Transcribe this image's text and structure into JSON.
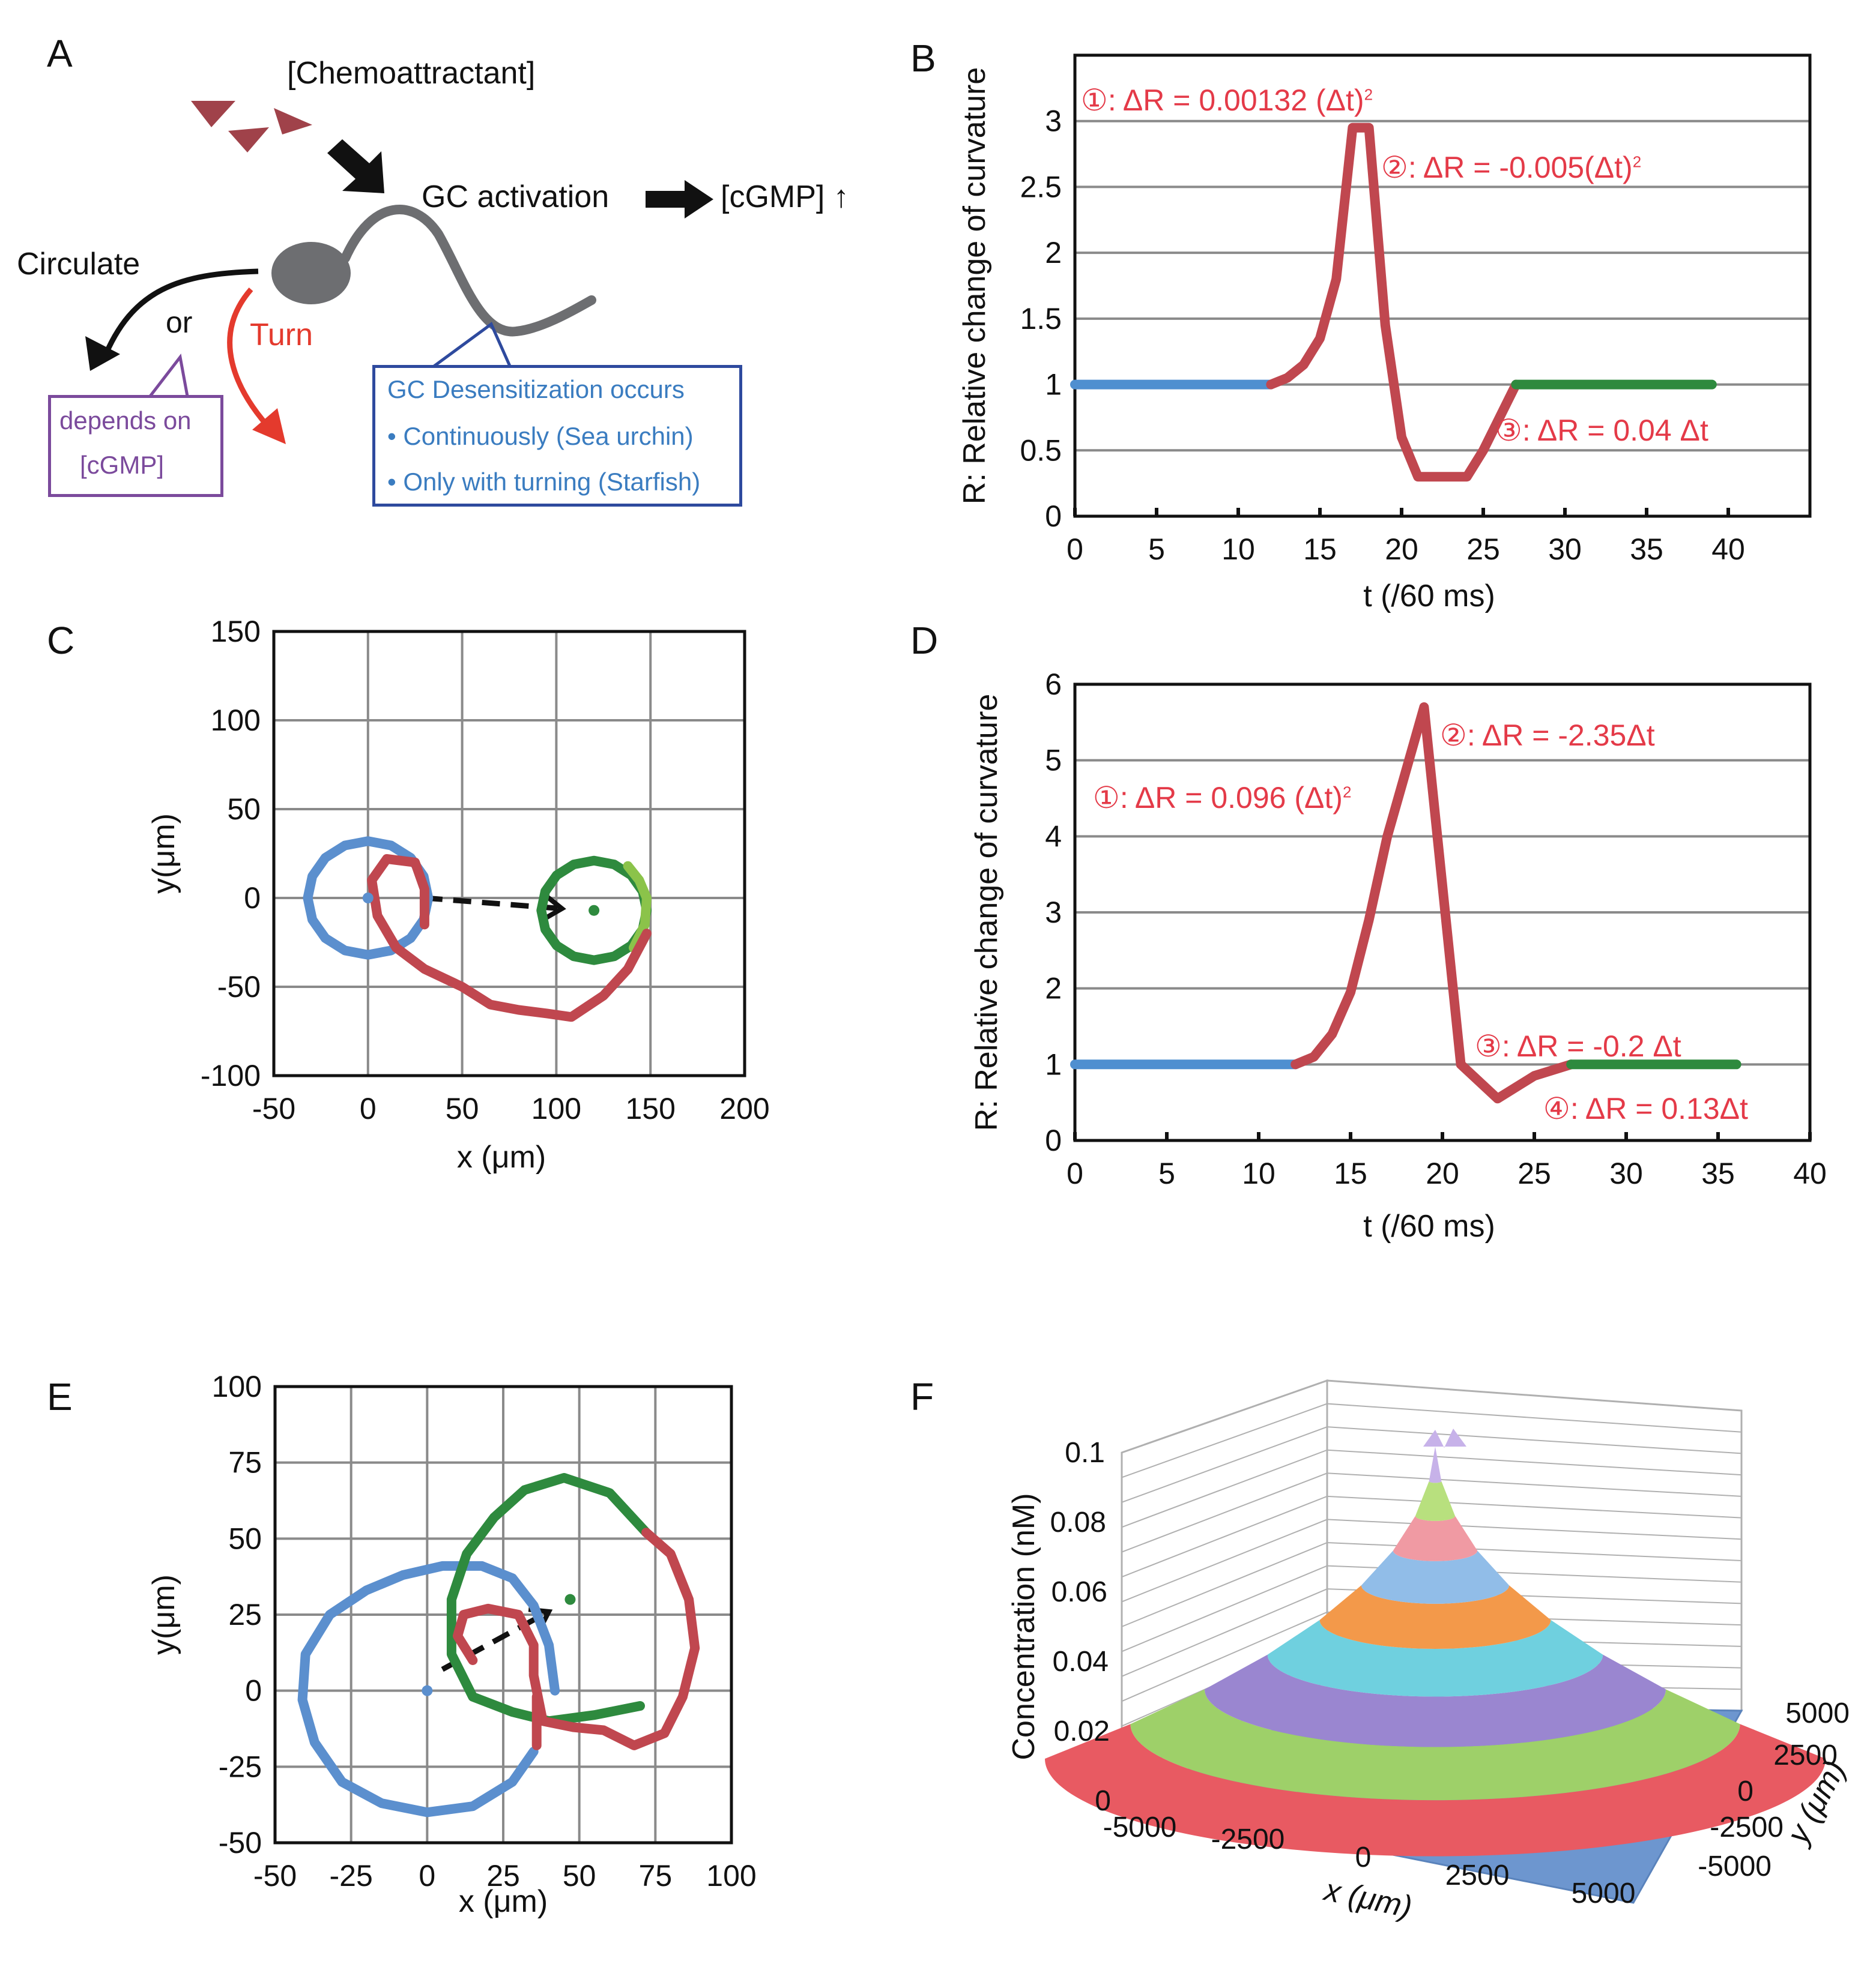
{
  "panels": {
    "A": {
      "letter": "A",
      "chemoattractant": "[Chemoattractant]",
      "gc_activation": "GC activation",
      "cgmp_up": "[cGMP] ↑",
      "circulate": "Circulate",
      "or": "or",
      "turn": "Turn",
      "depends_line1": "depends on",
      "depends_line2": "[cGMP]",
      "desens_title": "GC Desensitization occurs",
      "desens_item1": "• Continuously (Sea urchin)",
      "desens_item2": "• Only with turning (Starfish)",
      "colors": {
        "triangle": "#a0424a",
        "sperm": "#6d6e71",
        "arrow": "#111111",
        "turn": "#e43a2d",
        "blue_box": "#2e4a9e",
        "blue_text": "#3a7cc0",
        "purple": "#7b4a9c"
      }
    },
    "B": {
      "letter": "B"
    },
    "C": {
      "letter": "C"
    },
    "D": {
      "letter": "D"
    },
    "E": {
      "letter": "E"
    },
    "F": {
      "letter": "F"
    }
  },
  "annotations": {
    "B": {
      "a1_prefix": "①: ΔR = 0.00132 (Δt)",
      "a1_sup": "2",
      "a2_prefix": "②: ΔR = -0.005(Δt)",
      "a2_sup": "2",
      "a3": "③: ΔR = 0.04 Δt"
    },
    "D": {
      "a1_prefix": "①: ΔR = 0.096 (Δt)",
      "a1_sup": "2",
      "a2": "②: ΔR = -2.35Δt",
      "a3": "③: ΔR = -0.2 Δt",
      "a4": "④: ΔR = 0.13Δt"
    }
  },
  "chart_data": [
    {
      "id": "B",
      "type": "line",
      "xlabel": "t (/60 ms)",
      "ylabel": "R: Relative change of curvature",
      "xlim": [
        0,
        45
      ],
      "ylim": [
        0,
        3.5
      ],
      "xticks": [
        0,
        5,
        10,
        15,
        20,
        25,
        30,
        35,
        40
      ],
      "yticks": [
        0,
        0.5,
        1,
        1.5,
        2,
        2.5,
        3
      ],
      "ytick_labels": [
        "0",
        "0.5",
        "1",
        "1.5",
        "2",
        "2.5",
        "3"
      ],
      "grid": "horizontal",
      "series": [
        {
          "name": "before",
          "color": "#4f8fd0",
          "x": [
            0,
            12
          ],
          "y": [
            1,
            1
          ]
        },
        {
          "name": "turn",
          "color": "#c0474f",
          "x": [
            12,
            13,
            14,
            15,
            16,
            17,
            18,
            19,
            20,
            21,
            22,
            23,
            24,
            25,
            26,
            27
          ],
          "y": [
            1,
            1.05,
            1.15,
            1.35,
            1.8,
            2.95,
            2.95,
            1.45,
            0.6,
            0.3,
            0.3,
            0.3,
            0.3,
            0.5,
            0.75,
            1
          ]
        },
        {
          "name": "after",
          "color": "#2e8a3e",
          "x": [
            27,
            39
          ],
          "y": [
            1,
            1
          ]
        }
      ]
    },
    {
      "id": "C",
      "type": "line",
      "xlabel": "x (μm)",
      "ylabel": "y(μm)",
      "xlim": [
        -50,
        200
      ],
      "ylim": [
        -100,
        150
      ],
      "xticks": [
        -50,
        0,
        50,
        100,
        150,
        200
      ],
      "yticks": [
        -100,
        -50,
        0,
        50,
        100,
        150
      ],
      "grid": "both",
      "series": [
        {
          "name": "blue-circle",
          "color": "#5b8fce",
          "closed": true,
          "center": [
            0,
            0
          ],
          "radius": 32,
          "n": 16
        },
        {
          "name": "green-circle",
          "color": "#2e8a3e",
          "closed": true,
          "center": [
            120,
            -7
          ],
          "radius": 28,
          "n": 16
        },
        {
          "name": "green-light-arc",
          "color": "#8bc34a",
          "x": [
            138,
            144,
            148,
            147,
            141
          ],
          "y": [
            18,
            10,
            0,
            -15,
            -28
          ]
        },
        {
          "name": "turn-path",
          "color": "#c0474f",
          "x": [
            30,
            30,
            25,
            10,
            2,
            5,
            15,
            30,
            50,
            65,
            80,
            95,
            108,
            125,
            138,
            148
          ],
          "y": [
            -15,
            5,
            20,
            22,
            10,
            -10,
            -28,
            -40,
            -50,
            -60,
            -63,
            -65,
            -67,
            -55,
            -40,
            -20
          ]
        }
      ],
      "points": [
        {
          "x": 0,
          "y": 0,
          "color": "#5b8fce"
        },
        {
          "x": 120,
          "y": -7,
          "color": "#2e8a3e"
        }
      ],
      "arrows": [
        {
          "from": [
            30,
            0
          ],
          "to": [
            103,
            -6
          ]
        }
      ]
    },
    {
      "id": "D",
      "type": "line",
      "xlabel": "t (/60 ms)",
      "ylabel": "R: Relative change of curvature",
      "xlim": [
        0,
        40
      ],
      "ylim": [
        0,
        6
      ],
      "xticks": [
        0,
        5,
        10,
        15,
        20,
        25,
        30,
        35,
        40
      ],
      "yticks": [
        0,
        1,
        2,
        3,
        4,
        5,
        6
      ],
      "grid": "horizontal",
      "series": [
        {
          "name": "before",
          "color": "#4f8fd0",
          "x": [
            0,
            12
          ],
          "y": [
            1,
            1
          ]
        },
        {
          "name": "turn",
          "color": "#c0474f",
          "x": [
            12,
            13,
            14,
            15,
            16,
            17,
            18,
            19,
            21,
            23,
            25,
            27
          ],
          "y": [
            1,
            1.1,
            1.4,
            1.95,
            2.9,
            4.0,
            4.85,
            5.7,
            1.0,
            0.55,
            0.85,
            1.0
          ]
        },
        {
          "name": "after",
          "color": "#2e8a3e",
          "x": [
            27,
            36
          ],
          "y": [
            1,
            1
          ]
        }
      ]
    },
    {
      "id": "E",
      "type": "line",
      "xlabel": "x (μm)",
      "ylabel": "y(μm)",
      "xlim": [
        -50,
        100
      ],
      "ylim": [
        -50,
        100
      ],
      "xticks": [
        -50,
        -25,
        0,
        25,
        50,
        75,
        100
      ],
      "yticks": [
        -50,
        -25,
        0,
        25,
        50,
        75,
        100
      ],
      "grid": "both",
      "series": [
        {
          "name": "blue-circle",
          "color": "#5b8fce",
          "closed": false,
          "x": [
            42,
            40,
            35,
            28,
            18,
            5,
            -8,
            -20,
            -32,
            -40,
            -41,
            -37,
            -28,
            -15,
            0,
            15,
            28,
            35
          ],
          "y": [
            0,
            15,
            28,
            37,
            41,
            41,
            38,
            33,
            25,
            12,
            -3,
            -17,
            -30,
            -37,
            -40,
            -38,
            -30,
            -20
          ]
        },
        {
          "name": "green-circle",
          "color": "#2e8a3e",
          "x": [
            70,
            55,
            40,
            28,
            15,
            8,
            8,
            13,
            22,
            32,
            45,
            60,
            72
          ],
          "y": [
            -5,
            -8,
            -10,
            -7,
            -2,
            12,
            30,
            45,
            57,
            66,
            70,
            65,
            52
          ]
        },
        {
          "name": "turn-path",
          "color": "#c0474f",
          "x": [
            72,
            80,
            86,
            88,
            84,
            78,
            68,
            58,
            48,
            38,
            35,
            35,
            30,
            20,
            12,
            10,
            15
          ],
          "y": [
            52,
            45,
            30,
            14,
            -2,
            -14,
            -18,
            -13,
            -12,
            -10,
            5,
            15,
            25,
            27,
            25,
            18,
            10
          ]
        },
        {
          "name": "red-vertical",
          "color": "#c0474f",
          "x": [
            36,
            36
          ],
          "y": [
            -18,
            -2
          ]
        }
      ],
      "points": [
        {
          "x": 0,
          "y": 0,
          "color": "#5b8fce"
        },
        {
          "x": 47,
          "y": 30,
          "color": "#2e8a3e"
        }
      ],
      "arrows": [
        {
          "from": [
            5,
            7
          ],
          "to": [
            40,
            26
          ]
        }
      ]
    },
    {
      "id": "F",
      "type": "surface",
      "zlabel": "Concentration (nM)",
      "xlabel": "x (μm)",
      "ylabel": "y (μm)",
      "ztick_labels": [
        "0",
        "0.02",
        "0.04",
        "0.06",
        "0.08",
        "0.1"
      ],
      "xtick_labels": [
        "-5000",
        "-2500",
        "0",
        "2500",
        "5000"
      ],
      "ytick_labels": [
        "5000",
        "2500",
        "0",
        "-2500",
        "-5000"
      ],
      "band_colors": [
        "#e85a62",
        "#9ed069",
        "#9a86d0",
        "#6fd0df",
        "#f3994a",
        "#91bde8",
        "#f09aa3",
        "#b8e07e",
        "#c7b2e9"
      ]
    }
  ]
}
